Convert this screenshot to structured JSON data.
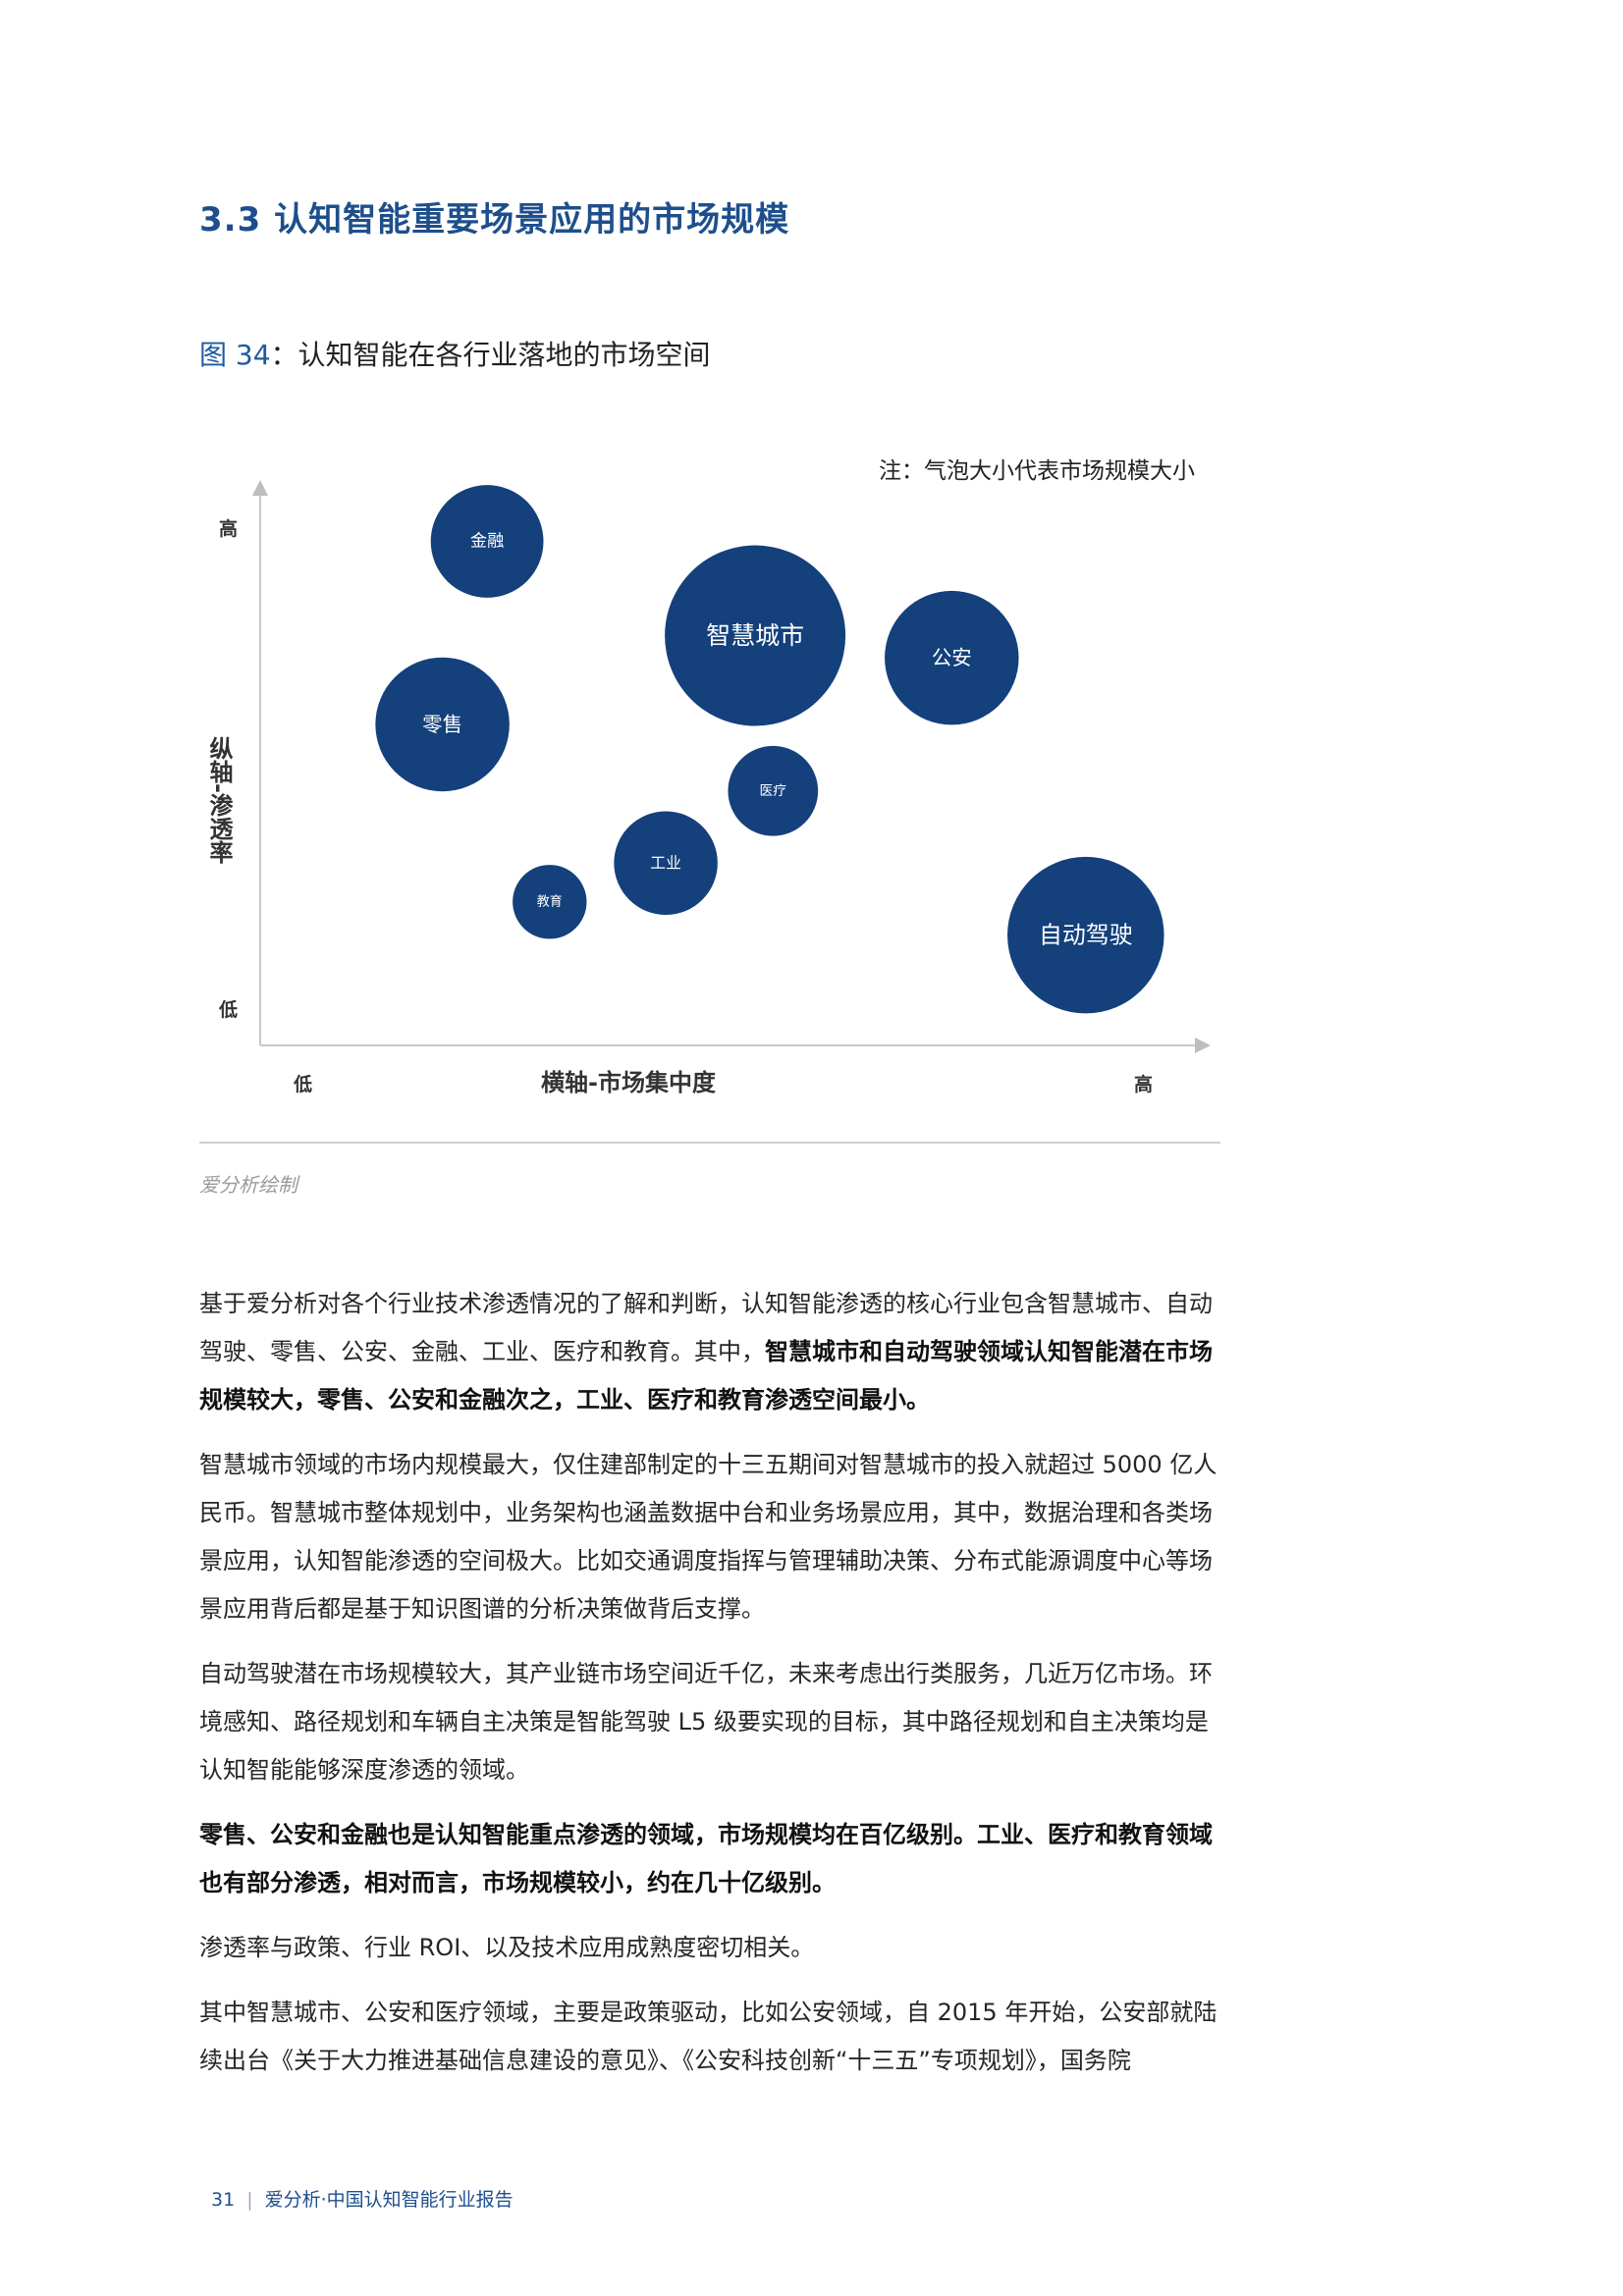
{
  "section_title": "3.3 认知智能重要场景应用的市场规模",
  "figure": {
    "number": "图 34",
    "separator": "：",
    "title": "认知智能在各行业落地的市场空间"
  },
  "chart_data": {
    "type": "bubble",
    "title": "",
    "note": "注：气泡大小代表市场规模大小",
    "xlabel": "横轴-市场集中度",
    "ylabel": "纵轴-渗透率",
    "x_tick_labels": {
      "low": "低",
      "high": "高"
    },
    "y_tick_labels": {
      "low": "低",
      "high": "高"
    },
    "xlim": [
      0,
      100
    ],
    "ylim": [
      0,
      100
    ],
    "grid": false,
    "bubble_color": "#14407c",
    "label_color": "#ffffff",
    "points": [
      {
        "label": "金融",
        "x": 21,
        "y": 90,
        "size": 5.8
      },
      {
        "label": "智慧城市",
        "x": 51,
        "y": 73,
        "size": 14.9
      },
      {
        "label": "公安",
        "x": 73,
        "y": 69,
        "size": 8.2
      },
      {
        "label": "零售",
        "x": 16,
        "y": 57,
        "size": 8.2
      },
      {
        "label": "医疗",
        "x": 53,
        "y": 45,
        "size": 3.7
      },
      {
        "label": "工业",
        "x": 41,
        "y": 32,
        "size": 4.9
      },
      {
        "label": "教育",
        "x": 28,
        "y": 25,
        "size": 2.5
      },
      {
        "label": "自动驾驶",
        "x": 88,
        "y": 19,
        "size": 11.2
      }
    ]
  },
  "source": "爱分析绘制",
  "body": {
    "p1_a": "基于爱分析对各个行业技术渗透情况的了解和判断，认知智能渗透的核心行业包含智慧城市、自动驾驶、零售、公安、金融、工业、医疗和教育。其中，",
    "p1_b": "智慧城市和自动驾驶领域认知智能潜在市场规模较大，零售、公安和金融次之，工业、医疗和教育渗透空间最小。",
    "p2": "智慧城市领域的市场内规模最大，仅住建部制定的十三五期间对智慧城市的投入就超过 5000 亿人民币。智慧城市整体规划中，业务架构也涵盖数据中台和业务场景应用，其中，数据治理和各类场景应用，认知智能渗透的空间极大。比如交通调度指挥与管理辅助决策、分布式能源调度中心等场景应用背后都是基于知识图谱的分析决策做背后支撑。",
    "p3": "自动驾驶潜在市场规模较大，其产业链市场空间近千亿，未来考虑出行类服务，几近万亿市场。环境感知、路径规划和车辆自主决策是智能驾驶 L5 级要实现的目标，其中路径规划和自主决策均是认知智能能够深度渗透的领域。",
    "p4": "零售、公安和金融也是认知智能重点渗透的领域，市场规模均在百亿级别。工业、医疗和教育领域也有部分渗透，相对而言，市场规模较小，约在几十亿级别。",
    "p5": "渗透率与政策、行业 ROI、以及技术应用成熟度密切相关。",
    "p6": "其中智慧城市、公安和医疗领域，主要是政策驱动，比如公安领域，自 2015 年开始，公安部就陆续出台《关于大力推进基础信息建设的意见》、《公安科技创新“十三五”专项规划》，国务院"
  },
  "footer": {
    "page": "31",
    "separator": "|",
    "text": "爱分析·中国认知智能行业报告"
  }
}
